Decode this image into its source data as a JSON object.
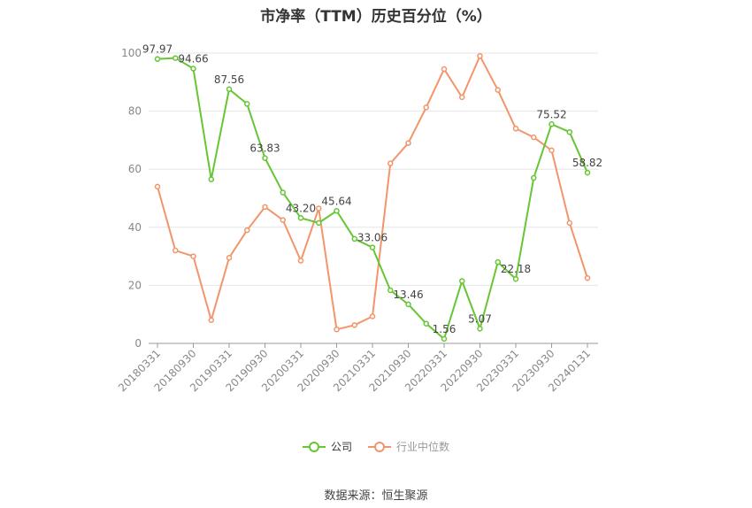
{
  "colors": {
    "company": "#66c633",
    "industry": "#f2956b",
    "axis": "#666666",
    "grid": "#e6e6e6"
  },
  "chart_data": {
    "type": "line",
    "title": "市净率（TTM）历史百分位（%）",
    "ylim": [
      0,
      100
    ],
    "yticks": [
      "0",
      "20",
      "40",
      "60",
      "80",
      "100"
    ],
    "x": [
      "20180331",
      "20180630",
      "20180930",
      "20181231",
      "20190331",
      "20190630",
      "20190930",
      "20191231",
      "20200331",
      "20200630",
      "20200930",
      "20201231",
      "20210331",
      "20210630",
      "20210930",
      "20211231",
      "20220331",
      "20220630",
      "20220930",
      "20221231",
      "20230331",
      "20230630",
      "20230930",
      "20231231",
      "20240131"
    ],
    "xtick_labels": [
      "20180331",
      "20180930",
      "20190331",
      "20190930",
      "20200331",
      "20200930",
      "20210331",
      "20210930",
      "20220331",
      "20220930",
      "20230331",
      "20230930",
      "20240131"
    ],
    "xtick_indices": [
      0,
      2,
      4,
      6,
      8,
      10,
      12,
      14,
      16,
      18,
      20,
      22,
      24
    ],
    "grid": true,
    "legend_position": "bottom",
    "series": [
      {
        "name": "公司",
        "color_key": "company",
        "values": [
          97.97,
          98.3,
          94.66,
          56.5,
          87.56,
          82.5,
          63.83,
          52.0,
          43.2,
          41.5,
          45.64,
          36.0,
          33.06,
          18.3,
          13.46,
          6.8,
          1.56,
          21.5,
          5.07,
          28.0,
          22.18,
          57.0,
          75.52,
          72.8,
          58.82
        ],
        "labels": {
          "0": "97.97",
          "2": "94.66",
          "4": "87.56",
          "6": "63.83",
          "8": "43.20",
          "10": "45.64",
          "12": "33.06",
          "14": "13.46",
          "16": "1.56",
          "18": "5.07",
          "20": "22.18",
          "22": "75.52",
          "24": "58.82"
        }
      },
      {
        "name": "行业中位数",
        "color_key": "industry",
        "values": [
          54.0,
          32.0,
          30.0,
          8.0,
          29.5,
          39.0,
          47.0,
          42.5,
          28.5,
          46.5,
          4.8,
          6.3,
          9.3,
          62.0,
          69.0,
          81.3,
          94.5,
          84.8,
          99.0,
          87.3,
          74.0,
          71.0,
          66.5,
          41.5,
          22.5
        ]
      }
    ]
  },
  "source": "数据来源：恒生聚源"
}
